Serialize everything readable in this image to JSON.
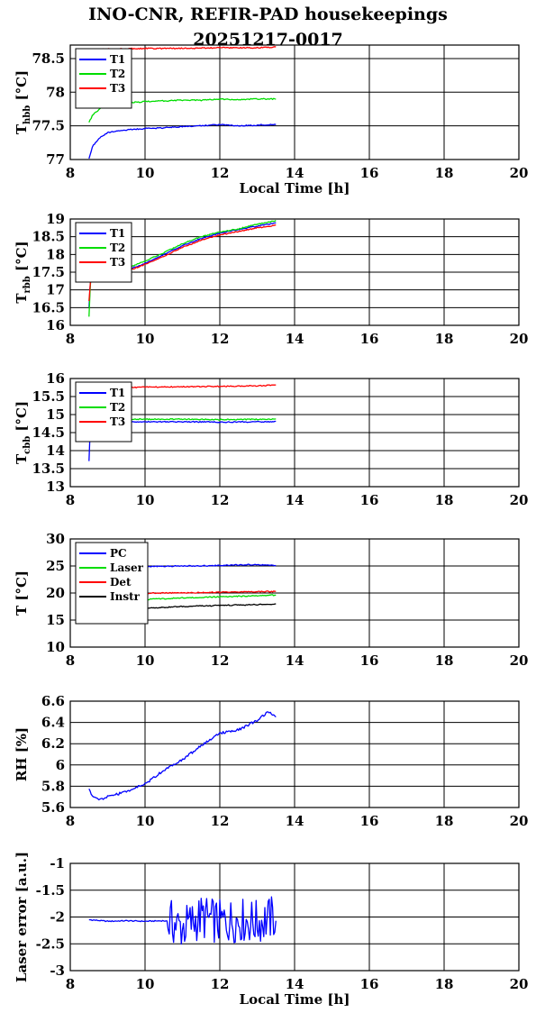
{
  "title_line1": "INO-CNR, REFIR-PAD housekeepings",
  "title_line2": "20251217-0017",
  "colors": {
    "blue": "#0000ff",
    "green": "#00dd00",
    "red": "#ff0000",
    "black": "#000000"
  },
  "chart_data": [
    {
      "type": "line",
      "id": "hbb",
      "ylabel_main": "T",
      "ylabel_sub": "hbb",
      "ylabel_unit": " [°C]",
      "xlabel": "Local Time [h]",
      "xlim": [
        8,
        20
      ],
      "ylim": [
        77,
        78.7
      ],
      "xticks": [
        8,
        10,
        12,
        14,
        16,
        18,
        20
      ],
      "yticks": [
        77,
        77.5,
        78,
        78.5
      ],
      "grid": true,
      "legend": "top-left",
      "x_range": [
        8.5,
        13.5
      ],
      "series": [
        {
          "name": "T1",
          "color": "blue",
          "x": [
            8.5,
            8.6,
            8.8,
            9.0,
            9.5,
            10.0,
            10.5,
            11.0,
            11.5,
            12.0,
            12.5,
            13.0,
            13.5
          ],
          "y": [
            77.02,
            77.2,
            77.33,
            77.4,
            77.44,
            77.46,
            77.47,
            77.49,
            77.5,
            77.52,
            77.5,
            77.51,
            77.52
          ]
        },
        {
          "name": "T2",
          "color": "green",
          "x": [
            8.5,
            8.6,
            8.8,
            9.0,
            9.5,
            10.0,
            10.5,
            11.0,
            11.5,
            12.0,
            12.5,
            13.0,
            13.5
          ],
          "y": [
            77.55,
            77.66,
            77.76,
            77.8,
            77.84,
            77.86,
            77.87,
            77.88,
            77.88,
            77.9,
            77.89,
            77.9,
            77.9
          ]
        },
        {
          "name": "T3",
          "color": "red",
          "x": [
            8.5,
            9.0,
            10.0,
            11.0,
            12.0,
            13.0,
            13.5
          ],
          "y": [
            78.63,
            78.64,
            78.65,
            78.65,
            78.66,
            78.66,
            78.67
          ]
        }
      ]
    },
    {
      "type": "line",
      "id": "rbb",
      "ylabel_main": "T",
      "ylabel_sub": "rbb",
      "ylabel_unit": " [°C]",
      "xlabel": "",
      "xlim": [
        8,
        20
      ],
      "ylim": [
        16,
        19
      ],
      "xticks": [
        8,
        10,
        12,
        14,
        16,
        18,
        20
      ],
      "yticks": [
        16,
        16.5,
        17,
        17.5,
        18,
        18.5,
        19
      ],
      "grid": true,
      "legend": "top-left",
      "x_range": [
        8.5,
        13.5
      ],
      "series": [
        {
          "name": "T1",
          "color": "blue",
          "x": [
            8.5,
            8.55,
            8.8,
            9.0,
            9.5,
            10.0,
            10.5,
            11.0,
            11.5,
            12.0,
            12.5,
            13.0,
            13.5
          ],
          "y": [
            16.5,
            17.45,
            17.42,
            17.4,
            17.55,
            17.75,
            18.0,
            18.25,
            18.45,
            18.6,
            18.7,
            18.8,
            18.88
          ]
        },
        {
          "name": "T2",
          "color": "green",
          "x": [
            8.5,
            8.55,
            8.8,
            9.0,
            9.5,
            10.0,
            10.5,
            11.0,
            11.5,
            12.0,
            12.5,
            13.0,
            13.5
          ],
          "y": [
            16.25,
            17.5,
            17.45,
            17.45,
            17.6,
            17.82,
            18.05,
            18.3,
            18.5,
            18.63,
            18.72,
            18.85,
            18.95
          ]
        },
        {
          "name": "T3",
          "color": "red",
          "x": [
            8.5,
            8.55,
            8.8,
            9.0,
            9.5,
            10.0,
            10.5,
            11.0,
            11.5,
            12.0,
            12.5,
            13.0,
            13.5
          ],
          "y": [
            16.7,
            17.4,
            17.38,
            17.36,
            17.52,
            17.72,
            17.95,
            18.2,
            18.4,
            18.55,
            18.65,
            18.75,
            18.82
          ]
        }
      ]
    },
    {
      "type": "line",
      "id": "cbb",
      "ylabel_main": "T",
      "ylabel_sub": "cbb",
      "ylabel_unit": " [°C]",
      "xlabel": "",
      "xlim": [
        8,
        20
      ],
      "ylim": [
        13,
        16
      ],
      "xticks": [
        8,
        10,
        12,
        14,
        16,
        18,
        20
      ],
      "yticks": [
        13,
        13.5,
        14,
        14.5,
        15,
        15.5,
        16
      ],
      "grid": true,
      "legend": "top-left",
      "x_range": [
        8.5,
        13.5
      ],
      "series": [
        {
          "name": "T1",
          "color": "blue",
          "x": [
            8.5,
            8.52,
            8.55,
            8.7,
            9.0,
            10.0,
            11.0,
            12.0,
            13.0,
            13.5
          ],
          "y": [
            13.7,
            14.4,
            14.8,
            14.82,
            14.8,
            14.8,
            14.8,
            14.79,
            14.8,
            14.8
          ]
        },
        {
          "name": "T2",
          "color": "green",
          "x": [
            8.5,
            9.0,
            10.0,
            11.0,
            12.0,
            13.0,
            13.5
          ],
          "y": [
            14.88,
            14.88,
            14.87,
            14.87,
            14.86,
            14.87,
            14.87
          ]
        },
        {
          "name": "T3",
          "color": "red",
          "x": [
            8.5,
            9.0,
            10.0,
            11.0,
            12.0,
            13.0,
            13.5
          ],
          "y": [
            15.72,
            15.74,
            15.76,
            15.77,
            15.78,
            15.8,
            15.82
          ]
        }
      ]
    },
    {
      "type": "line",
      "id": "temps",
      "ylabel_main": "T [°C]",
      "ylabel_sub": "",
      "ylabel_unit": "",
      "xlabel": "",
      "xlim": [
        8,
        20
      ],
      "ylim": [
        10,
        30
      ],
      "xticks": [
        8,
        10,
        12,
        14,
        16,
        18,
        20
      ],
      "yticks": [
        10,
        15,
        20,
        25,
        30
      ],
      "grid": true,
      "legend": "top-left",
      "x_range": [
        8.5,
        13.5
      ],
      "series": [
        {
          "name": "PC",
          "color": "blue",
          "x": [
            8.5,
            9.0,
            10.0,
            11.0,
            12.0,
            12.8,
            13.5
          ],
          "y": [
            24.8,
            24.85,
            24.9,
            25.0,
            25.1,
            25.25,
            25.1
          ]
        },
        {
          "name": "Laser",
          "color": "green",
          "x": [
            8.5,
            9.0,
            10.0,
            11.0,
            12.0,
            13.0,
            13.5
          ],
          "y": [
            18.5,
            18.6,
            18.8,
            19.1,
            19.3,
            19.5,
            19.6
          ]
        },
        {
          "name": "Det",
          "color": "red",
          "x": [
            8.5,
            9.0,
            10.0,
            11.0,
            12.0,
            13.0,
            13.5
          ],
          "y": [
            19.8,
            19.85,
            19.95,
            20.05,
            20.15,
            20.25,
            20.3
          ]
        },
        {
          "name": "Instr",
          "color": "black",
          "x": [
            8.5,
            9.0,
            10.0,
            11.0,
            12.0,
            13.0,
            13.5
          ],
          "y": [
            16.8,
            16.85,
            17.2,
            17.5,
            17.7,
            17.85,
            17.9
          ]
        }
      ]
    },
    {
      "type": "line",
      "id": "rh",
      "ylabel_main": "RH [%]",
      "ylabel_sub": "",
      "ylabel_unit": "",
      "xlabel": "",
      "xlim": [
        8,
        20
      ],
      "ylim": [
        5.6,
        6.6
      ],
      "xticks": [
        8,
        10,
        12,
        14,
        16,
        18,
        20
      ],
      "yticks": [
        5.6,
        5.8,
        6,
        6.2,
        6.4,
        6.6
      ],
      "grid": true,
      "legend": "none",
      "x_range": [
        8.5,
        13.5
      ],
      "series": [
        {
          "name": "",
          "color": "blue",
          "x": [
            8.5,
            8.6,
            8.8,
            9.0,
            9.5,
            10.0,
            10.5,
            11.0,
            11.5,
            12.0,
            12.5,
            13.0,
            13.3,
            13.5
          ],
          "y": [
            5.78,
            5.7,
            5.67,
            5.7,
            5.75,
            5.82,
            5.95,
            6.05,
            6.18,
            6.3,
            6.33,
            6.42,
            6.5,
            6.45
          ]
        }
      ]
    },
    {
      "type": "line",
      "id": "laser",
      "ylabel_main": "Laser error [a.u.]",
      "ylabel_sub": "",
      "ylabel_unit": "",
      "xlabel": "Local Time [h]",
      "xlim": [
        8,
        20
      ],
      "ylim": [
        -3,
        -1
      ],
      "xticks": [
        8,
        10,
        12,
        14,
        16,
        18,
        20
      ],
      "yticks": [
        -3,
        -2.5,
        -2,
        -1.5,
        -1
      ],
      "grid": true,
      "legend": "none",
      "x_range": [
        8.5,
        13.5
      ],
      "series": [
        {
          "name": "",
          "color": "blue",
          "x": [
            8.5,
            9.0,
            9.5,
            10.0,
            10.5,
            10.7,
            11.0,
            11.5,
            12.0,
            12.5,
            13.0,
            13.5
          ],
          "y": [
            -2.05,
            -2.08,
            -2.07,
            -2.08,
            -2.07,
            -2.1,
            -2.2,
            -2.0,
            -2.1,
            -2.05,
            -2.1,
            -2.0
          ]
        }
      ]
    }
  ]
}
